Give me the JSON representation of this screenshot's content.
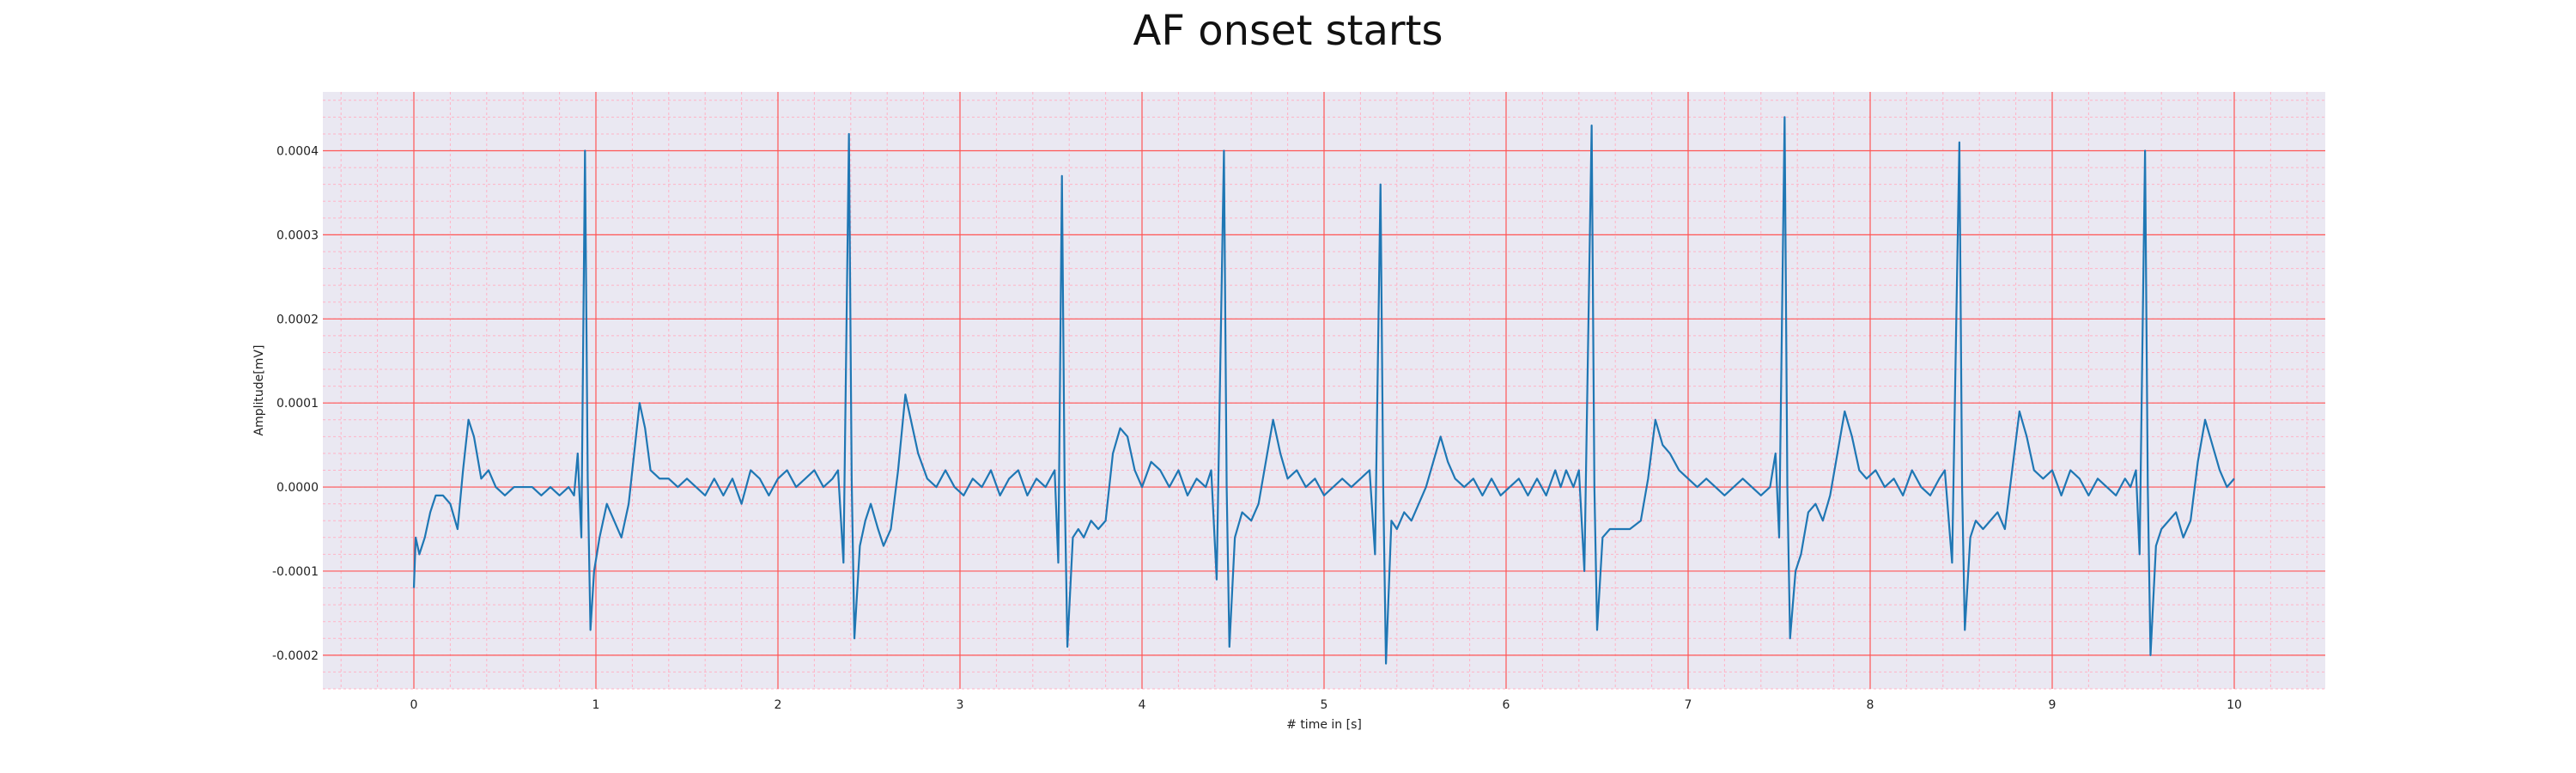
{
  "chart_data": {
    "type": "line",
    "title": "AF onset starts",
    "xlabel": "# time in [s]",
    "ylabel": "Amplitude[mV]",
    "xlim": [
      -0.5,
      10.5
    ],
    "ylim": [
      -0.00024,
      0.00047
    ],
    "x_ticks": [
      0,
      1,
      2,
      3,
      4,
      5,
      6,
      7,
      8,
      9,
      10
    ],
    "x_tick_labels": [
      "0",
      "1",
      "2",
      "3",
      "4",
      "5",
      "6",
      "7",
      "8",
      "9",
      "10"
    ],
    "y_ticks": [
      -0.0002,
      -0.0001,
      0.0,
      0.0001,
      0.0002,
      0.0003,
      0.0004
    ],
    "y_tick_labels": [
      "-0.0002",
      "-0.0001",
      "0.0000",
      "0.0001",
      "0.0002",
      "0.0003",
      "0.0004"
    ],
    "grid": {
      "major": true,
      "minor": true,
      "major_color": "#ff5555",
      "minor_color": "#ffb3c6"
    },
    "background_color": "#eae8f2",
    "series": [
      {
        "color": "#1f77b4",
        "points": [
          [
            0.0,
            -0.00012
          ],
          [
            0.01,
            -6e-05
          ],
          [
            0.03,
            -8e-05
          ],
          [
            0.06,
            -6e-05
          ],
          [
            0.09,
            -3e-05
          ],
          [
            0.12,
            -1e-05
          ],
          [
            0.16,
            -1e-05
          ],
          [
            0.2,
            -2e-05
          ],
          [
            0.24,
            -5e-05
          ],
          [
            0.27,
            2e-05
          ],
          [
            0.3,
            8e-05
          ],
          [
            0.33,
            6e-05
          ],
          [
            0.37,
            1e-05
          ],
          [
            0.41,
            2e-05
          ],
          [
            0.45,
            0.0
          ],
          [
            0.5,
            -1e-05
          ],
          [
            0.55,
            0.0
          ],
          [
            0.6,
            0.0
          ],
          [
            0.65,
            0.0
          ],
          [
            0.7,
            -1e-05
          ],
          [
            0.75,
            0.0
          ],
          [
            0.8,
            -1e-05
          ],
          [
            0.85,
            0.0
          ],
          [
            0.88,
            -1e-05
          ],
          [
            0.9,
            4e-05
          ],
          [
            0.92,
            -6e-05
          ],
          [
            0.94,
            0.0004
          ],
          [
            0.955,
            1e-05
          ],
          [
            0.97,
            -0.00017
          ],
          [
            0.99,
            -0.0001
          ],
          [
            1.02,
            -6e-05
          ],
          [
            1.06,
            -2e-05
          ],
          [
            1.1,
            -4e-05
          ],
          [
            1.14,
            -6e-05
          ],
          [
            1.18,
            -2e-05
          ],
          [
            1.21,
            4e-05
          ],
          [
            1.24,
            0.0001
          ],
          [
            1.27,
            7e-05
          ],
          [
            1.3,
            2e-05
          ],
          [
            1.35,
            1e-05
          ],
          [
            1.4,
            1e-05
          ],
          [
            1.45,
            0.0
          ],
          [
            1.5,
            1e-05
          ],
          [
            1.55,
            0.0
          ],
          [
            1.6,
            -1e-05
          ],
          [
            1.65,
            1e-05
          ],
          [
            1.7,
            -1e-05
          ],
          [
            1.75,
            1e-05
          ],
          [
            1.8,
            -2e-05
          ],
          [
            1.85,
            2e-05
          ],
          [
            1.9,
            1e-05
          ],
          [
            1.95,
            -1e-05
          ],
          [
            2.0,
            1e-05
          ],
          [
            2.05,
            2e-05
          ],
          [
            2.1,
            0.0
          ],
          [
            2.15,
            1e-05
          ],
          [
            2.2,
            2e-05
          ],
          [
            2.25,
            0.0
          ],
          [
            2.3,
            1e-05
          ],
          [
            2.33,
            2e-05
          ],
          [
            2.36,
            -9e-05
          ],
          [
            2.39,
            0.00042
          ],
          [
            2.405,
            1e-05
          ],
          [
            2.42,
            -0.00018
          ],
          [
            2.45,
            -7e-05
          ],
          [
            2.48,
            -4e-05
          ],
          [
            2.51,
            -2e-05
          ],
          [
            2.55,
            -5e-05
          ],
          [
            2.58,
            -7e-05
          ],
          [
            2.62,
            -5e-05
          ],
          [
            2.66,
            2e-05
          ],
          [
            2.7,
            0.00011
          ],
          [
            2.73,
            8e-05
          ],
          [
            2.77,
            4e-05
          ],
          [
            2.82,
            1e-05
          ],
          [
            2.87,
            0.0
          ],
          [
            2.92,
            2e-05
          ],
          [
            2.97,
            0.0
          ],
          [
            3.02,
            -1e-05
          ],
          [
            3.07,
            1e-05
          ],
          [
            3.12,
            0.0
          ],
          [
            3.17,
            2e-05
          ],
          [
            3.22,
            -1e-05
          ],
          [
            3.27,
            1e-05
          ],
          [
            3.32,
            2e-05
          ],
          [
            3.37,
            -1e-05
          ],
          [
            3.42,
            1e-05
          ],
          [
            3.47,
            0.0
          ],
          [
            3.52,
            2e-05
          ],
          [
            3.54,
            -9e-05
          ],
          [
            3.56,
            0.00037
          ],
          [
            3.575,
            0.0
          ],
          [
            3.59,
            -0.00019
          ],
          [
            3.62,
            -6e-05
          ],
          [
            3.65,
            -5e-05
          ],
          [
            3.68,
            -6e-05
          ],
          [
            3.72,
            -4e-05
          ],
          [
            3.76,
            -5e-05
          ],
          [
            3.8,
            -4e-05
          ],
          [
            3.84,
            4e-05
          ],
          [
            3.88,
            7e-05
          ],
          [
            3.92,
            6e-05
          ],
          [
            3.96,
            2e-05
          ],
          [
            4.0,
            0.0
          ],
          [
            4.05,
            3e-05
          ],
          [
            4.1,
            2e-05
          ],
          [
            4.15,
            0.0
          ],
          [
            4.2,
            2e-05
          ],
          [
            4.25,
            -1e-05
          ],
          [
            4.3,
            1e-05
          ],
          [
            4.35,
            0.0
          ],
          [
            4.38,
            2e-05
          ],
          [
            4.41,
            -0.00011
          ],
          [
            4.45,
            0.0004
          ],
          [
            4.465,
            0.0
          ],
          [
            4.48,
            -0.00019
          ],
          [
            4.51,
            -6e-05
          ],
          [
            4.55,
            -3e-05
          ],
          [
            4.6,
            -4e-05
          ],
          [
            4.64,
            -2e-05
          ],
          [
            4.68,
            3e-05
          ],
          [
            4.72,
            8e-05
          ],
          [
            4.76,
            4e-05
          ],
          [
            4.8,
            1e-05
          ],
          [
            4.85,
            2e-05
          ],
          [
            4.9,
            0.0
          ],
          [
            4.95,
            1e-05
          ],
          [
            5.0,
            -1e-05
          ],
          [
            5.05,
            0.0
          ],
          [
            5.1,
            1e-05
          ],
          [
            5.15,
            0.0
          ],
          [
            5.2,
            1e-05
          ],
          [
            5.25,
            2e-05
          ],
          [
            5.28,
            -8e-05
          ],
          [
            5.31,
            0.00036
          ],
          [
            5.325,
            0.0
          ],
          [
            5.34,
            -0.00021
          ],
          [
            5.37,
            -4e-05
          ],
          [
            5.4,
            -5e-05
          ],
          [
            5.44,
            -3e-05
          ],
          [
            5.48,
            -4e-05
          ],
          [
            5.52,
            -2e-05
          ],
          [
            5.56,
            0.0
          ],
          [
            5.6,
            3e-05
          ],
          [
            5.64,
            6e-05
          ],
          [
            5.68,
            3e-05
          ],
          [
            5.72,
            1e-05
          ],
          [
            5.77,
            0.0
          ],
          [
            5.82,
            1e-05
          ],
          [
            5.87,
            -1e-05
          ],
          [
            5.92,
            1e-05
          ],
          [
            5.97,
            -1e-05
          ],
          [
            6.02,
            0.0
          ],
          [
            6.07,
            1e-05
          ],
          [
            6.12,
            -1e-05
          ],
          [
            6.17,
            1e-05
          ],
          [
            6.22,
            -1e-05
          ],
          [
            6.27,
            2e-05
          ],
          [
            6.3,
            0.0
          ],
          [
            6.33,
            2e-05
          ],
          [
            6.37,
            0.0
          ],
          [
            6.4,
            2e-05
          ],
          [
            6.43,
            -0.0001
          ],
          [
            6.47,
            0.00043
          ],
          [
            6.485,
            0.0
          ],
          [
            6.5,
            -0.00017
          ],
          [
            6.53,
            -6e-05
          ],
          [
            6.57,
            -5e-05
          ],
          [
            6.62,
            -5e-05
          ],
          [
            6.68,
            -5e-05
          ],
          [
            6.74,
            -4e-05
          ],
          [
            6.78,
            1e-05
          ],
          [
            6.82,
            8e-05
          ],
          [
            6.86,
            5e-05
          ],
          [
            6.9,
            4e-05
          ],
          [
            6.95,
            2e-05
          ],
          [
            7.0,
            1e-05
          ],
          [
            7.05,
            0.0
          ],
          [
            7.1,
            1e-05
          ],
          [
            7.15,
            0.0
          ],
          [
            7.2,
            -1e-05
          ],
          [
            7.25,
            0.0
          ],
          [
            7.3,
            1e-05
          ],
          [
            7.35,
            0.0
          ],
          [
            7.4,
            -1e-05
          ],
          [
            7.45,
            0.0
          ],
          [
            7.48,
            4e-05
          ],
          [
            7.5,
            -6e-05
          ],
          [
            7.53,
            0.00044
          ],
          [
            7.545,
            0.0
          ],
          [
            7.56,
            -0.00018
          ],
          [
            7.59,
            -0.0001
          ],
          [
            7.62,
            -8e-05
          ],
          [
            7.66,
            -3e-05
          ],
          [
            7.7,
            -2e-05
          ],
          [
            7.74,
            -4e-05
          ],
          [
            7.78,
            -1e-05
          ],
          [
            7.82,
            4e-05
          ],
          [
            7.86,
            9e-05
          ],
          [
            7.9,
            6e-05
          ],
          [
            7.94,
            2e-05
          ],
          [
            7.98,
            1e-05
          ],
          [
            8.03,
            2e-05
          ],
          [
            8.08,
            0.0
          ],
          [
            8.13,
            1e-05
          ],
          [
            8.18,
            -1e-05
          ],
          [
            8.23,
            2e-05
          ],
          [
            8.28,
            0.0
          ],
          [
            8.33,
            -1e-05
          ],
          [
            8.38,
            1e-05
          ],
          [
            8.41,
            2e-05
          ],
          [
            8.45,
            -9e-05
          ],
          [
            8.49,
            0.00041
          ],
          [
            8.505,
            0.0
          ],
          [
            8.52,
            -0.00017
          ],
          [
            8.55,
            -6e-05
          ],
          [
            8.58,
            -4e-05
          ],
          [
            8.62,
            -5e-05
          ],
          [
            8.66,
            -4e-05
          ],
          [
            8.7,
            -3e-05
          ],
          [
            8.74,
            -5e-05
          ],
          [
            8.78,
            2e-05
          ],
          [
            8.82,
            9e-05
          ],
          [
            8.86,
            6e-05
          ],
          [
            8.9,
            2e-05
          ],
          [
            8.95,
            1e-05
          ],
          [
            9.0,
            2e-05
          ],
          [
            9.05,
            -1e-05
          ],
          [
            9.1,
            2e-05
          ],
          [
            9.15,
            1e-05
          ],
          [
            9.2,
            -1e-05
          ],
          [
            9.25,
            1e-05
          ],
          [
            9.3,
            0.0
          ],
          [
            9.35,
            -1e-05
          ],
          [
            9.4,
            1e-05
          ],
          [
            9.43,
            0.0
          ],
          [
            9.46,
            2e-05
          ],
          [
            9.48,
            -8e-05
          ],
          [
            9.51,
            0.0004
          ],
          [
            9.525,
            0.0
          ],
          [
            9.54,
            -0.0002
          ],
          [
            9.57,
            -7e-05
          ],
          [
            9.6,
            -5e-05
          ],
          [
            9.64,
            -4e-05
          ],
          [
            9.68,
            -3e-05
          ],
          [
            9.72,
            -6e-05
          ],
          [
            9.76,
            -4e-05
          ],
          [
            9.8,
            3e-05
          ],
          [
            9.84,
            8e-05
          ],
          [
            9.88,
            5e-05
          ],
          [
            9.92,
            2e-05
          ],
          [
            9.96,
            0.0
          ],
          [
            10.0,
            1e-05
          ]
        ]
      }
    ]
  }
}
